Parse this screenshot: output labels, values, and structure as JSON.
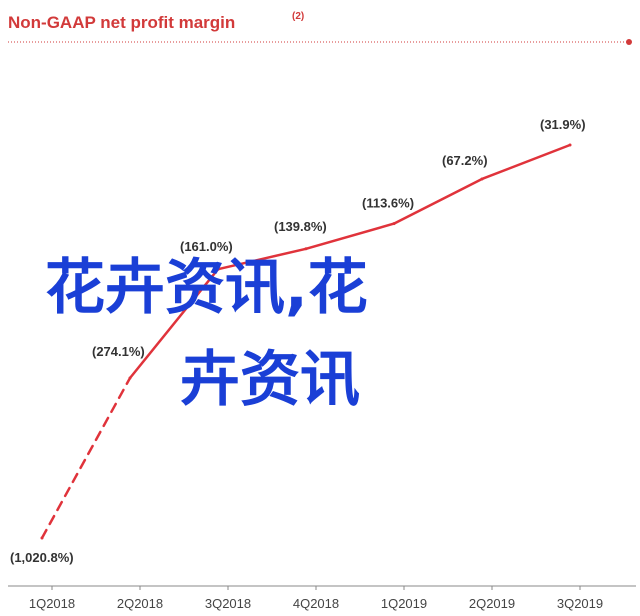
{
  "chart_data": {
    "type": "line",
    "title": "Non-GAAP net profit margin",
    "title_note": "(2)",
    "categories": [
      "1Q2018",
      "2Q2018",
      "3Q2018",
      "4Q2018",
      "1Q2019",
      "2Q2019",
      "3Q2019"
    ],
    "values": [
      -1020.8,
      -274.1,
      -161.0,
      -139.8,
      -113.6,
      -67.2,
      -31.9
    ],
    "data_labels": [
      "(1,020.8%)",
      "(274.1%)",
      "(161.0%)",
      "(139.8%)",
      "(113.6%)",
      "(67.2%)",
      "(31.9%)"
    ],
    "dashed_segments": [
      0
    ],
    "line_color": "#e0333b",
    "title_color": "#d23a3a",
    "grid": false,
    "legend": "none"
  },
  "overlay": {
    "line1": "花卉资讯,花",
    "line2": "卉资讯",
    "color": "#1a3fd6"
  }
}
